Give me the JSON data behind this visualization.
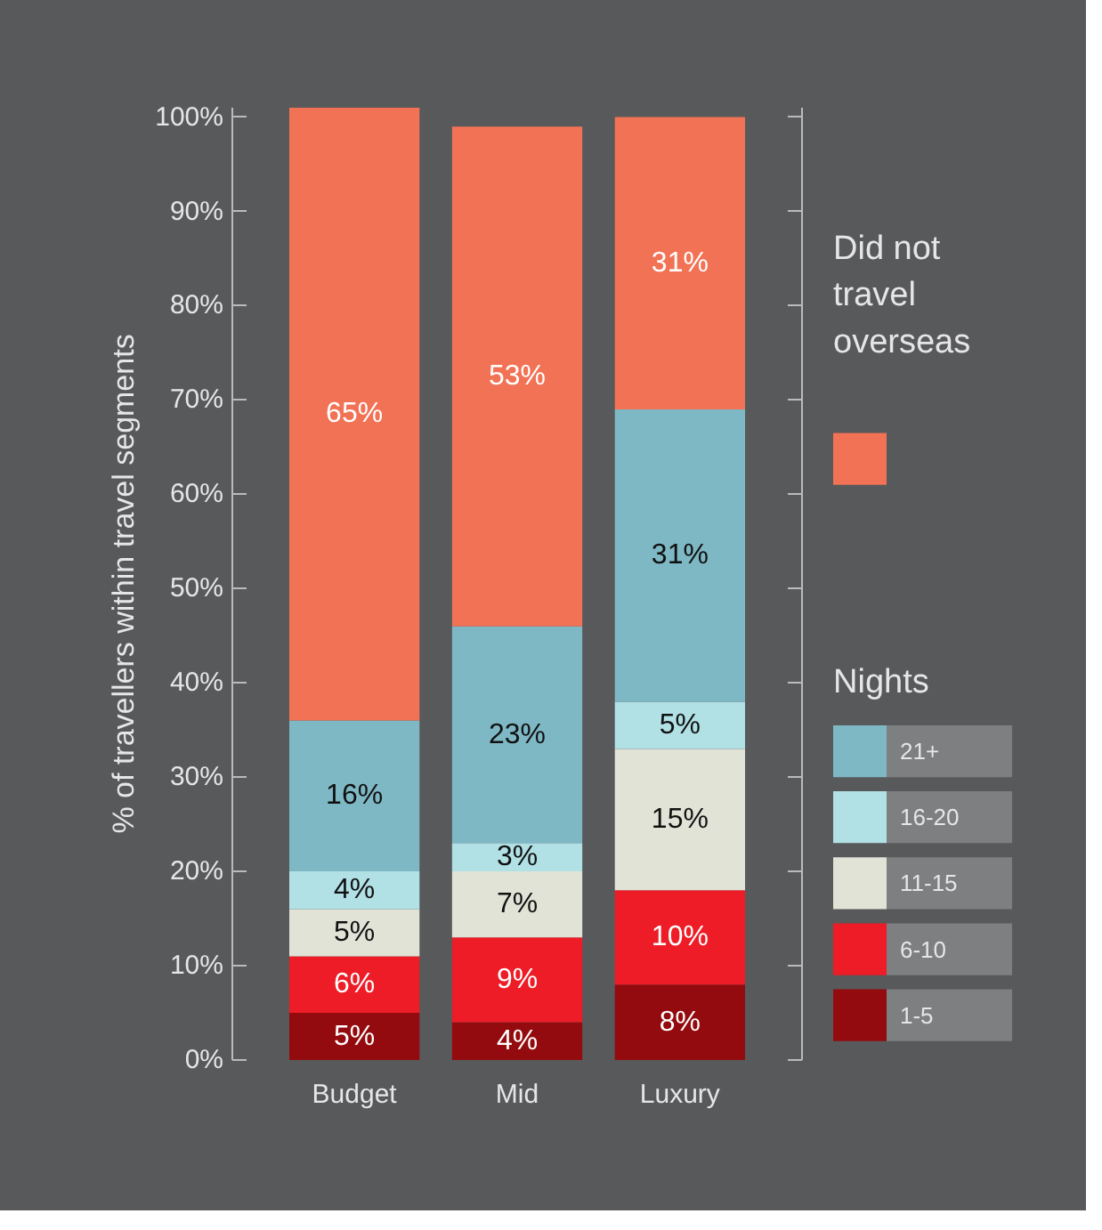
{
  "chart_data": {
    "type": "bar",
    "stacked": true,
    "ylabel": "% of travellers within travel segments",
    "legend_title": "Nights",
    "categories": [
      "Budget",
      "Mid",
      "Luxury"
    ],
    "series": [
      {
        "name": "1-5",
        "color": "#930b0e",
        "values": [
          5,
          4,
          8
        ],
        "value_labels": [
          "5%",
          "4%",
          "8%"
        ]
      },
      {
        "name": "6-10",
        "color": "#ed1c26",
        "values": [
          6,
          9,
          10
        ],
        "value_labels": [
          "6%",
          "9%",
          "10%"
        ]
      },
      {
        "name": "11-15",
        "color": "#e2e3d7",
        "values": [
          5,
          7,
          15
        ],
        "value_labels": [
          "5%",
          "7%",
          "15%"
        ]
      },
      {
        "name": "16-20",
        "color": "#b1e0e5",
        "values": [
          4,
          3,
          5
        ],
        "value_labels": [
          "4%",
          "3%",
          "5%"
        ]
      },
      {
        "name": "21+",
        "color": "#7eb8c5",
        "values": [
          16,
          23,
          31
        ],
        "value_labels": [
          "16%",
          "23%",
          "31%"
        ]
      },
      {
        "name": "Did not travel overseas",
        "color": "#f27255",
        "values": [
          65,
          53,
          31
        ],
        "value_labels": [
          "65%",
          "53%",
          "31%"
        ]
      }
    ],
    "ylim": [
      0,
      101
    ],
    "yticks": [
      {
        "value": 0,
        "label": "0%"
      },
      {
        "value": 10,
        "label": "10%"
      },
      {
        "value": 20,
        "label": "20%"
      },
      {
        "value": 30,
        "label": "30%"
      },
      {
        "value": 40,
        "label": "40%"
      },
      {
        "value": 50,
        "label": "50%"
      },
      {
        "value": 60,
        "label": "60%"
      },
      {
        "value": 70,
        "label": "70%"
      },
      {
        "value": 80,
        "label": "80%"
      },
      {
        "value": 90,
        "label": "90%"
      },
      {
        "value": 100,
        "label": "100%"
      }
    ],
    "grid": false,
    "legend": "right"
  }
}
